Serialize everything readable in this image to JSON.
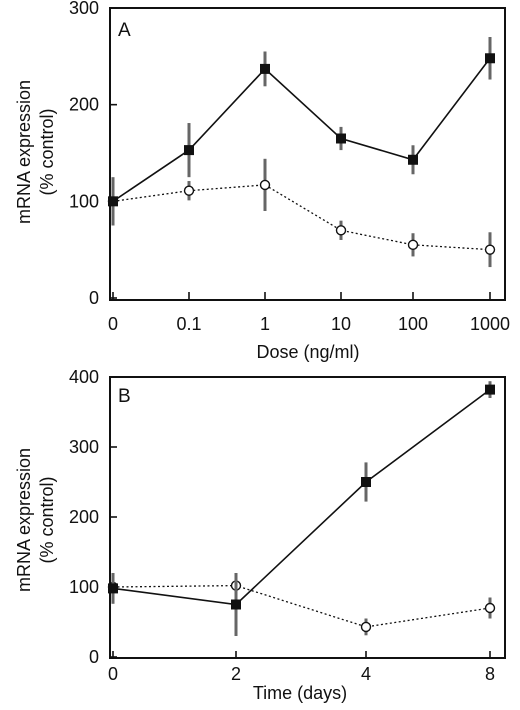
{
  "chart_data": [
    {
      "panel_label": "A",
      "type": "line",
      "xlabel": "Dose (ng/ml)",
      "ylabel": "mRNA expression",
      "ylabel2": "(% control)",
      "categories": [
        "0",
        "0.1",
        "1",
        "10",
        "100",
        "1000"
      ],
      "ylim": [
        0,
        300
      ],
      "yticks": [
        "0",
        "100",
        "200",
        "300"
      ],
      "yticks_values": [
        0,
        100,
        200,
        300
      ],
      "grid": false,
      "series": [
        {
          "marker": "filled-square",
          "line": "solid",
          "values": [
            100,
            153,
            237,
            165,
            143,
            248
          ],
          "errors": [
            25,
            28,
            18,
            12,
            15,
            22
          ]
        },
        {
          "marker": "open-circle",
          "line": "dotted",
          "values": [
            100,
            111,
            117,
            70,
            55,
            50
          ],
          "errors": [
            8,
            10,
            27,
            10,
            12,
            18
          ]
        }
      ]
    },
    {
      "panel_label": "B",
      "type": "line",
      "xlabel": "Time (days)",
      "ylabel": "mRNA expression",
      "ylabel2": "(% control)",
      "categories": [
        "0",
        "2",
        "4",
        "8"
      ],
      "ylim": [
        0,
        400
      ],
      "yticks": [
        "0",
        "100",
        "200",
        "300",
        "400"
      ],
      "yticks_values": [
        0,
        100,
        200,
        300,
        400
      ],
      "grid": false,
      "series": [
        {
          "marker": "filled-square",
          "line": "solid",
          "values": [
            98,
            75,
            250,
            382
          ],
          "errors": [
            22,
            45,
            28,
            12
          ]
        },
        {
          "marker": "open-circle",
          "line": "dotted",
          "values": [
            100,
            102,
            43,
            70
          ],
          "errors": [
            8,
            15,
            12,
            15
          ]
        }
      ]
    }
  ]
}
